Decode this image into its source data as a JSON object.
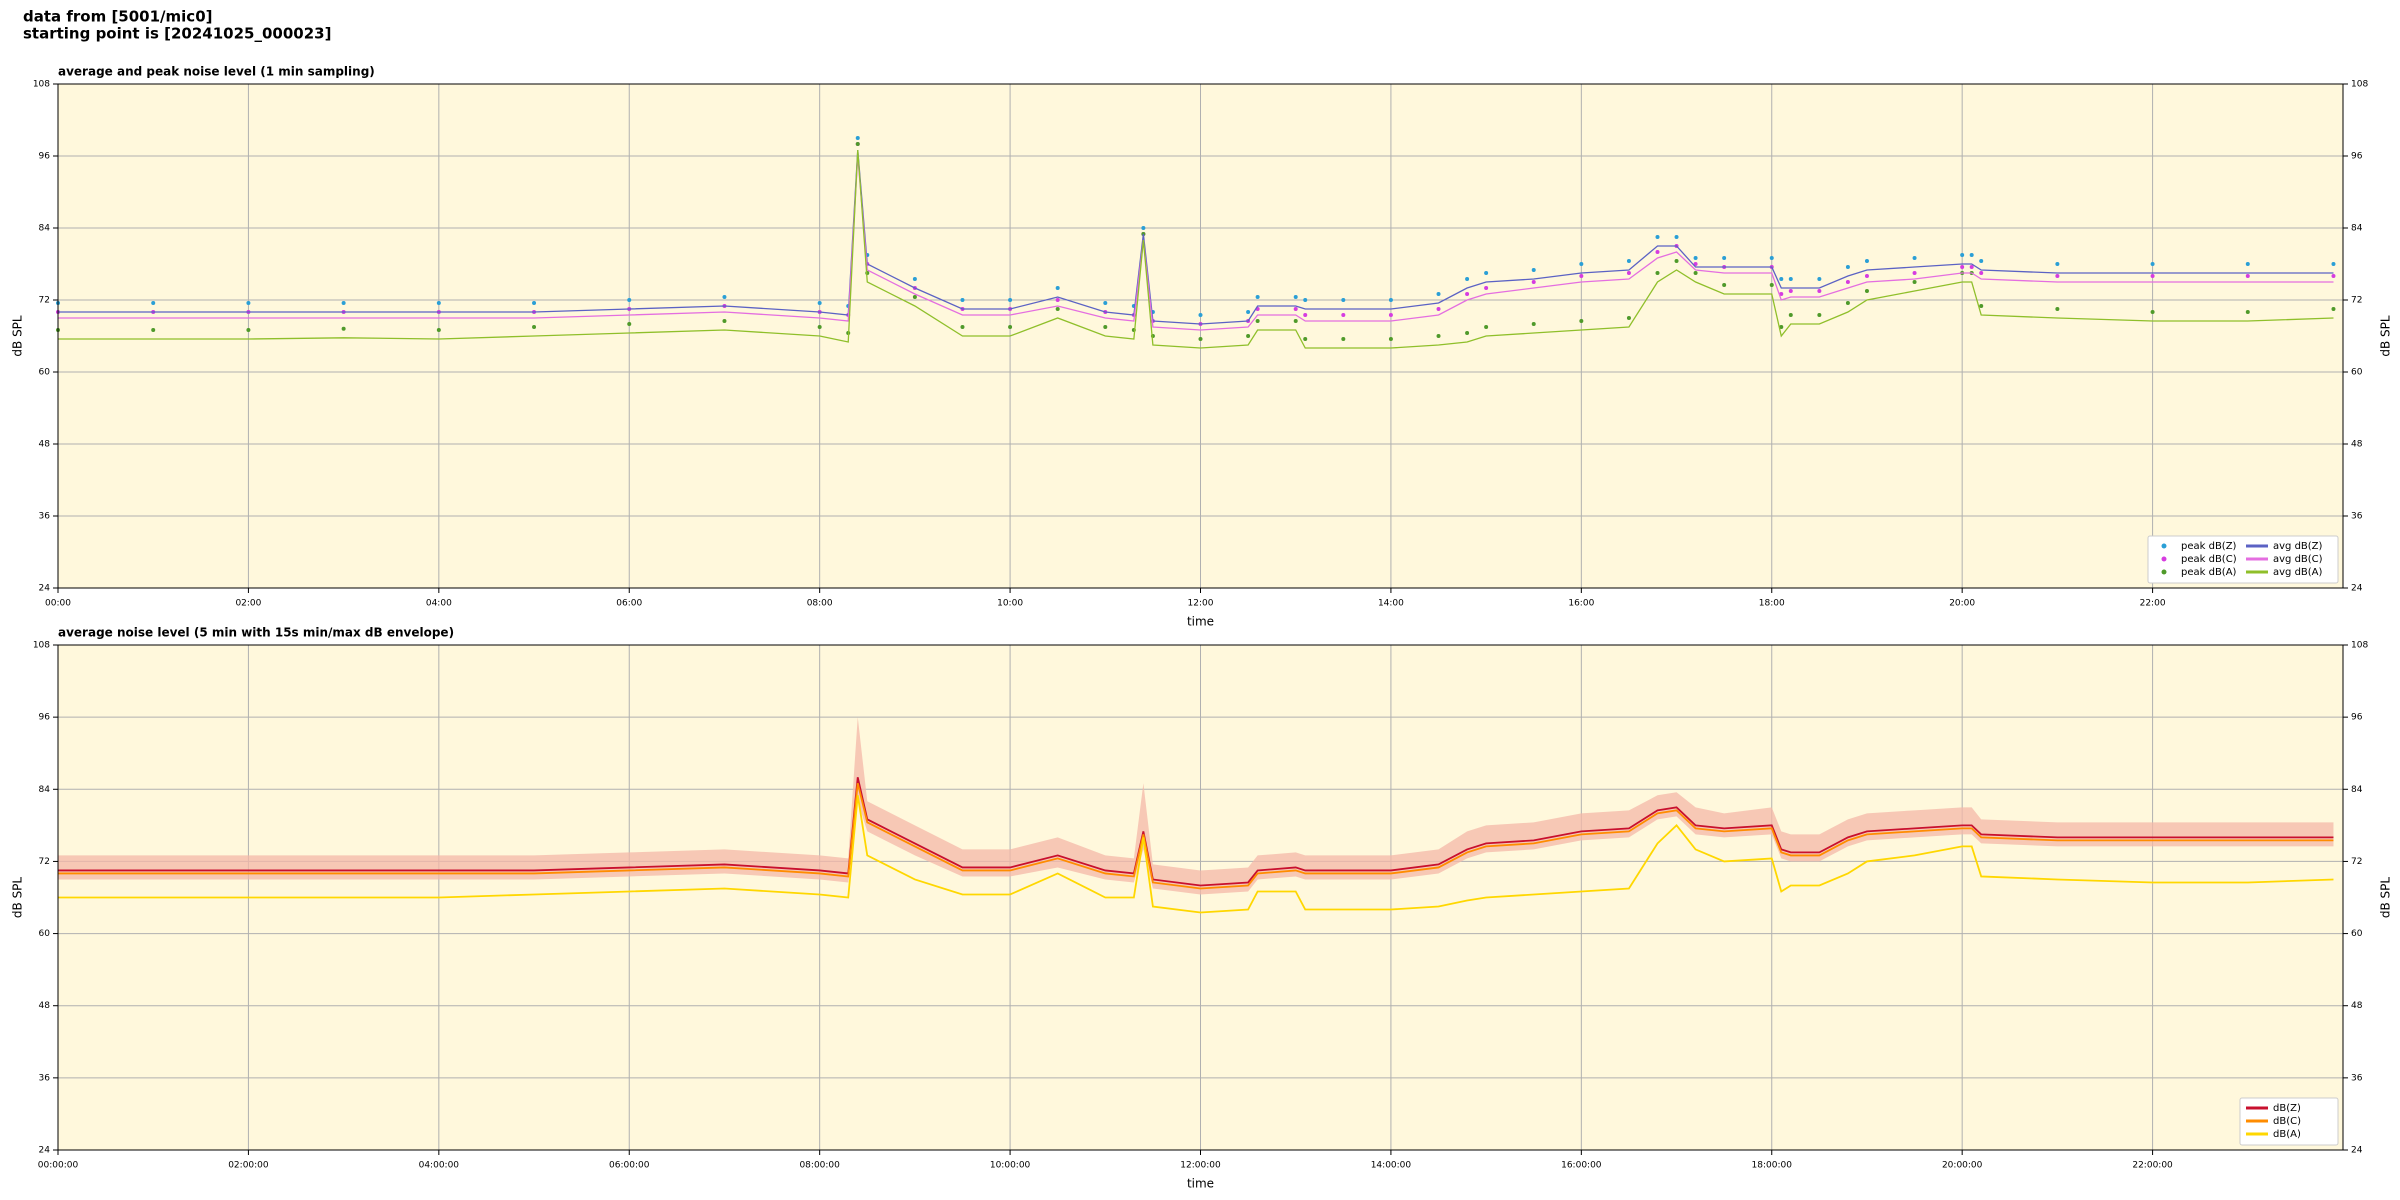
{
  "header": {
    "line1": "data from [5001/mic0]",
    "line2": "starting point is [20241025_000023]"
  },
  "chart_data": [
    {
      "type": "line",
      "title": "average and peak noise level (1 min sampling)",
      "xlabel": "time",
      "ylabel": "dB SPL",
      "xlim": [
        0,
        24
      ],
      "ylim": [
        24,
        108
      ],
      "yticks": [
        24,
        36,
        48,
        60,
        72,
        84,
        96,
        108
      ],
      "xticks": [
        {
          "value": 0,
          "label": "00:00"
        },
        {
          "value": 2,
          "label": "02:00"
        },
        {
          "value": 4,
          "label": "04:00"
        },
        {
          "value": 6,
          "label": "06:00"
        },
        {
          "value": 8,
          "label": "08:00"
        },
        {
          "value": 10,
          "label": "10:00"
        },
        {
          "value": 12,
          "label": "12:00"
        },
        {
          "value": 14,
          "label": "14:00"
        },
        {
          "value": 16,
          "label": "16:00"
        },
        {
          "value": 18,
          "label": "18:00"
        },
        {
          "value": 20,
          "label": "20:00"
        },
        {
          "value": 22,
          "label": "22:00"
        }
      ],
      "grid": true,
      "legend": "lower right",
      "legend_columns": 2,
      "x": [
        0,
        1,
        2,
        3,
        4,
        5,
        6,
        7,
        8,
        8.3,
        8.4,
        8.5,
        9,
        9.5,
        10,
        10.5,
        11,
        11.3,
        11.4,
        11.5,
        12,
        12.5,
        12.6,
        13,
        13.1,
        13.5,
        14,
        14.5,
        14.8,
        15,
        15.5,
        16,
        16.5,
        16.8,
        17,
        17.2,
        17.5,
        18,
        18.1,
        18.2,
        18.5,
        18.8,
        19,
        19.5,
        20,
        20.1,
        20.2,
        21,
        22,
        23,
        23.9
      ],
      "series": [
        {
          "name": "peak dB(Z)",
          "color": "#2a9fd6",
          "marker": "dot",
          "values": [
            71.5,
            71.5,
            71.5,
            71.5,
            71.5,
            71.5,
            72,
            72.5,
            71.5,
            71,
            99,
            79.5,
            75.5,
            72,
            72,
            74,
            71.5,
            71,
            84,
            70,
            69.5,
            70,
            72.5,
            72.5,
            72,
            72,
            72,
            73,
            75.5,
            76.5,
            77,
            78,
            78.5,
            82.5,
            82.5,
            79,
            79,
            79,
            75.5,
            75.5,
            75.5,
            77.5,
            78.5,
            79,
            79.5,
            79.5,
            78.5,
            78,
            78,
            78,
            78
          ]
        },
        {
          "name": "peak dB(C)",
          "color": "#d63ce0",
          "marker": "dot",
          "values": [
            70,
            70,
            70,
            70,
            70,
            70,
            70.5,
            71,
            70,
            69.5,
            98,
            78,
            74,
            70.5,
            70.5,
            72,
            70,
            69.5,
            83,
            68.5,
            68,
            68.5,
            70.5,
            70.5,
            69.5,
            69.5,
            69.5,
            70.5,
            73,
            74,
            75,
            76,
            76.5,
            80,
            81,
            78,
            77.5,
            77.5,
            73,
            73.5,
            73.5,
            75,
            76,
            76.5,
            77.5,
            77.5,
            76.5,
            76,
            76,
            76,
            76
          ]
        },
        {
          "name": "peak dB(A)",
          "color": "#4f9a2a",
          "marker": "dot",
          "values": [
            67,
            67,
            67,
            67.2,
            67,
            67.5,
            68,
            68.5,
            67.5,
            66.5,
            98,
            76.5,
            72.5,
            67.5,
            67.5,
            70.5,
            67.5,
            67,
            83,
            66,
            65.5,
            66,
            68.5,
            68.5,
            65.5,
            65.5,
            65.5,
            66,
            66.5,
            67.5,
            68,
            68.5,
            69,
            76.5,
            78.5,
            76.5,
            74.5,
            74.5,
            67.5,
            69.5,
            69.5,
            71.5,
            73.5,
            75,
            76.5,
            76.5,
            71,
            70.5,
            70,
            70,
            70.5
          ]
        },
        {
          "name": "avg dB(Z)",
          "color": "#5b62c4",
          "values": [
            70,
            70,
            70,
            70,
            70,
            70,
            70.5,
            71,
            70,
            69.5,
            97,
            78,
            74,
            70.5,
            70.5,
            72.5,
            70,
            69.5,
            83,
            68.5,
            68,
            68.5,
            71,
            71,
            70.5,
            70.5,
            70.5,
            71.5,
            74,
            75,
            75.5,
            76.5,
            77,
            81,
            81,
            77.5,
            77.5,
            77.5,
            74,
            74,
            74,
            76,
            77,
            77.5,
            78,
            78,
            77,
            76.5,
            76.5,
            76.5,
            76.5
          ]
        },
        {
          "name": "avg dB(C)",
          "color": "#e46ee0",
          "values": [
            69,
            69,
            69,
            69,
            69,
            69,
            69.5,
            70,
            69,
            68.5,
            96,
            77,
            73,
            69.5,
            69.5,
            71,
            69,
            68.5,
            82,
            67.5,
            67,
            67.5,
            69.5,
            69.5,
            68.5,
            68.5,
            68.5,
            69.5,
            72,
            73,
            74,
            75,
            75.5,
            79,
            80,
            77,
            76.5,
            76.5,
            72,
            72.5,
            72.5,
            74,
            75,
            75.5,
            76.5,
            76.5,
            75.5,
            75,
            75,
            75,
            75
          ]
        },
        {
          "name": "avg dB(A)",
          "color": "#8fbf2a",
          "values": [
            65.5,
            65.5,
            65.5,
            65.7,
            65.5,
            66,
            66.5,
            67,
            66,
            65,
            97,
            75,
            71,
            66,
            66,
            69,
            66,
            65.5,
            82,
            64.5,
            64,
            64.5,
            67,
            67,
            64,
            64,
            64,
            64.5,
            65,
            66,
            66.5,
            67,
            67.5,
            75,
            77,
            75,
            73,
            73,
            66,
            68,
            68,
            70,
            72,
            73.5,
            75,
            75,
            69.5,
            69,
            68.5,
            68.5,
            69
          ]
        }
      ]
    },
    {
      "type": "line",
      "title": "average noise level (5 min with 15s min/max dB envelope)",
      "xlabel": "time",
      "ylabel": "dB SPL",
      "xlim": [
        0,
        24
      ],
      "ylim": [
        24,
        108
      ],
      "yticks": [
        24,
        36,
        48,
        60,
        72,
        84,
        96,
        108
      ],
      "xticks": [
        {
          "value": 0,
          "label": "00:00:00"
        },
        {
          "value": 2,
          "label": "02:00:00"
        },
        {
          "value": 4,
          "label": "04:00:00"
        },
        {
          "value": 6,
          "label": "06:00:00"
        },
        {
          "value": 8,
          "label": "08:00:00"
        },
        {
          "value": 10,
          "label": "10:00:00"
        },
        {
          "value": 12,
          "label": "12:00:00"
        },
        {
          "value": 14,
          "label": "14:00:00"
        },
        {
          "value": 16,
          "label": "16:00:00"
        },
        {
          "value": 18,
          "label": "18:00:00"
        },
        {
          "value": 20,
          "label": "20:00:00"
        },
        {
          "value": 22,
          "label": "22:00:00"
        }
      ],
      "grid": true,
      "legend": "lower right",
      "legend_columns": 1,
      "x": [
        0,
        1,
        2,
        3,
        4,
        5,
        6,
        7,
        8,
        8.3,
        8.4,
        8.5,
        9,
        9.5,
        10,
        10.5,
        11,
        11.3,
        11.4,
        11.5,
        12,
        12.5,
        12.6,
        13,
        13.1,
        13.5,
        14,
        14.5,
        14.8,
        15,
        15.5,
        16,
        16.5,
        16.8,
        17,
        17.2,
        17.5,
        18,
        18.1,
        18.2,
        18.5,
        18.8,
        19,
        19.5,
        20,
        20.1,
        20.2,
        21,
        22,
        23,
        23.9
      ],
      "envelope": {
        "color": "#f4b8a8",
        "low": [
          69,
          69,
          69,
          69,
          69,
          69,
          69.5,
          70,
          69,
          68.5,
          82,
          77,
          73,
          69.5,
          69.5,
          71,
          69,
          68.5,
          74,
          67.5,
          66.5,
          67,
          69,
          69.5,
          69,
          69,
          69,
          70,
          72.5,
          73.5,
          74,
          75.5,
          76,
          79,
          79.5,
          76.5,
          76,
          76.5,
          72.5,
          72,
          72,
          74.5,
          75.5,
          76,
          76.5,
          76.5,
          75,
          74.5,
          74.5,
          74.5,
          74.5
        ],
        "high": [
          73,
          73,
          73,
          73,
          73,
          73,
          73.5,
          74,
          73,
          72.5,
          96,
          82,
          78,
          74,
          74,
          76,
          73,
          72.5,
          85,
          71.5,
          70.5,
          71,
          73,
          73.5,
          73,
          73,
          73,
          74,
          77,
          78,
          78.5,
          80,
          80.5,
          83,
          83.5,
          81,
          80,
          81,
          77,
          76.5,
          76.5,
          79,
          80,
          80.5,
          81,
          81,
          79,
          78.5,
          78.5,
          78.5,
          78.5
        ]
      },
      "series": [
        {
          "name": "dB(Z)",
          "color": "#c8102e",
          "values": [
            70.5,
            70.5,
            70.5,
            70.5,
            70.5,
            70.5,
            71,
            71.5,
            70.5,
            70,
            86,
            79,
            75,
            71,
            71,
            73,
            70.5,
            70,
            77,
            69,
            68,
            68.5,
            70.5,
            71,
            70.5,
            70.5,
            70.5,
            71.5,
            74,
            75,
            75.5,
            77,
            77.5,
            80.5,
            81,
            78,
            77.5,
            78,
            74,
            73.5,
            73.5,
            76,
            77,
            77.5,
            78,
            78,
            76.5,
            76,
            76,
            76,
            76
          ]
        },
        {
          "name": "dB(C)",
          "color": "#ff8c00",
          "values": [
            70,
            70,
            70,
            70,
            70,
            70,
            70.5,
            71,
            70,
            69.5,
            85,
            78.5,
            74.5,
            70.5,
            70.5,
            72.5,
            70,
            69.5,
            76.5,
            68.5,
            67.5,
            68,
            70,
            70.5,
            70,
            70,
            70,
            71,
            73.5,
            74.5,
            75,
            76.5,
            77,
            80,
            80.5,
            77.5,
            77,
            77.5,
            73.5,
            73,
            73,
            75.5,
            76.5,
            77,
            77.5,
            77.5,
            76,
            75.5,
            75.5,
            75.5,
            75.5
          ]
        },
        {
          "name": "dB(A)",
          "color": "#ffd700",
          "values": [
            66,
            66,
            66,
            66,
            66,
            66.5,
            67,
            67.5,
            66.5,
            66,
            83,
            73,
            69,
            66.5,
            66.5,
            70,
            66,
            66,
            76,
            64.5,
            63.5,
            64,
            67,
            67,
            64,
            64,
            64,
            64.5,
            65.5,
            66,
            66.5,
            67,
            67.5,
            75,
            78,
            74,
            72,
            72.5,
            67,
            68,
            68,
            70,
            72,
            73,
            74.5,
            74.5,
            69.5,
            69,
            68.5,
            68.5,
            69
          ]
        }
      ]
    }
  ]
}
